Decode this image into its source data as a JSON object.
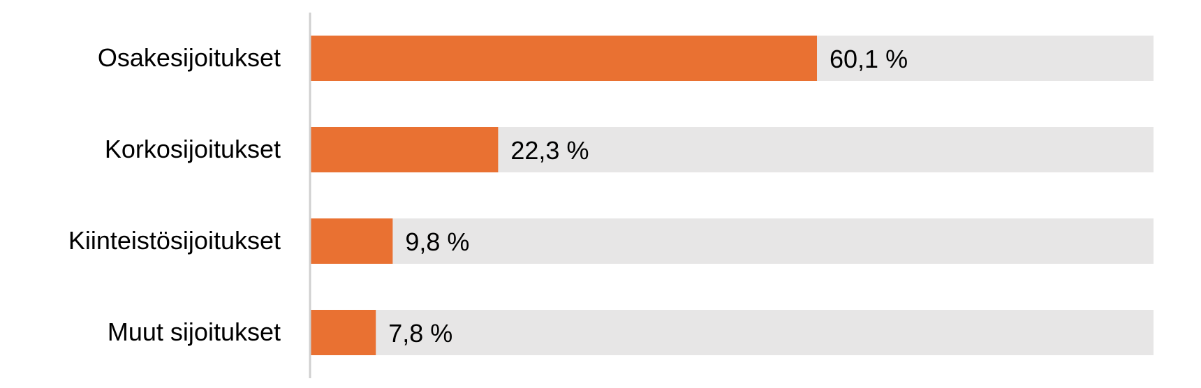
{
  "chart_data": {
    "type": "bar",
    "orientation": "horizontal",
    "categories": [
      "Osakesijoitukset",
      "Korkosijoitukset",
      "Kiinteistösijoitukset",
      "Muut sijoitukset"
    ],
    "values": [
      60.1,
      22.3,
      9.8,
      7.8
    ],
    "value_labels": [
      "60,1 %",
      "22,3 %",
      "9,8 %",
      "7,8 %"
    ],
    "color": "#e97132",
    "track_color": "#e7e6e6",
    "xlim": [
      0,
      100
    ]
  }
}
